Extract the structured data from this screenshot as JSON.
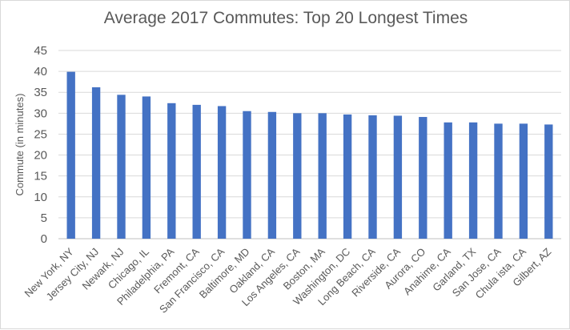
{
  "chart_data": {
    "type": "bar",
    "title": "Average 2017 Commutes: Top 20 Longest Times",
    "xlabel": "",
    "ylabel": "Commute (in minutes)",
    "ylim": [
      0,
      45
    ],
    "yticks": [
      0,
      5,
      10,
      15,
      20,
      25,
      30,
      35,
      40,
      45
    ],
    "grid": true,
    "categories": [
      "New York, NY",
      "Jersey City, NJ",
      "Newark, NJ",
      "Chicago, IL",
      "Philadelphia, PA",
      "Fremont, CA",
      "San Francisco, CA",
      "Baltimore, MD",
      "Oakland, CA",
      "Los Angeles, CA",
      "Boston, MA",
      "Washington, DC",
      "Long Beach, CA",
      "Riverside, CA",
      "Aurora, CO",
      "Anahime, CA",
      "Garland, TX",
      "San Jose, CA",
      "Chula ista, CA",
      "Gilbert, AZ"
    ],
    "values": [
      39.9,
      36.2,
      34.4,
      34.0,
      32.4,
      32.0,
      31.7,
      30.5,
      30.3,
      30.0,
      30.0,
      29.7,
      29.5,
      29.4,
      29.1,
      27.8,
      27.8,
      27.5,
      27.5,
      27.3
    ],
    "colors": {
      "bar": "#4472c4",
      "grid": "#d9d9d9",
      "axis": "#bfbfbf",
      "text": "#595959"
    }
  }
}
